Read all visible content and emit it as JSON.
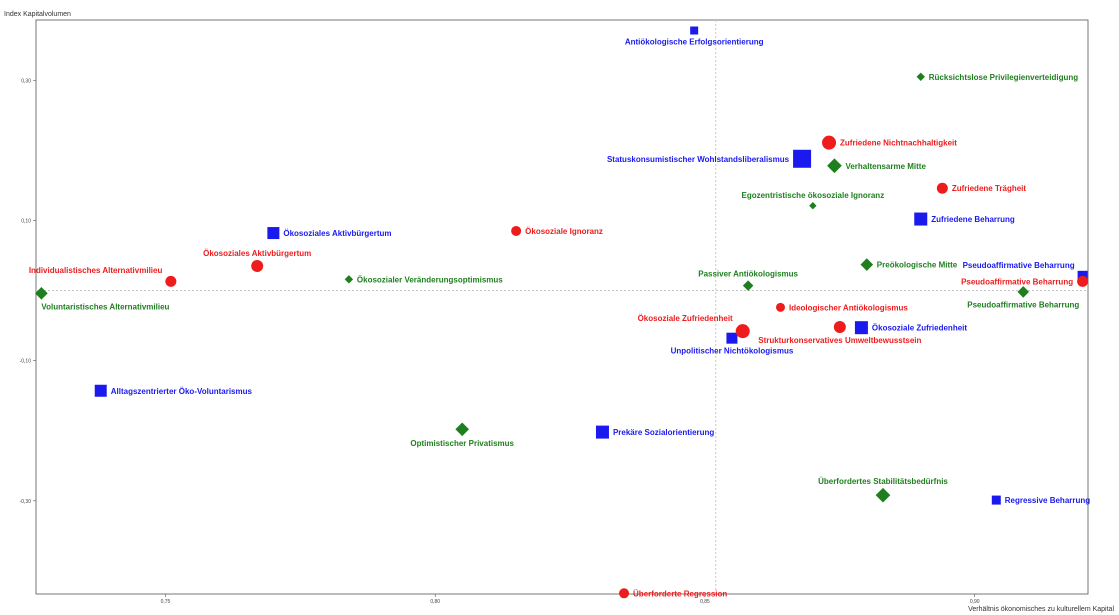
{
  "chart_data": {
    "type": "scatter",
    "title": "",
    "ylabel": "Index Kapitalvolumen",
    "xlabel": "Verhältnis ökonomisches zu kulturellem Kapital",
    "xlim": [
      0.726,
      0.921
    ],
    "ylim": [
      -0.433,
      0.386
    ],
    "x_ticks": [
      {
        "value": 0.75,
        "label": "0,75"
      },
      {
        "value": 0.8,
        "label": "0,80"
      },
      {
        "value": 0.85,
        "label": "0,85"
      },
      {
        "value": 0.9,
        "label": "0,90"
      }
    ],
    "y_ticks": [
      {
        "value": -0.3,
        "label": "-0,30"
      },
      {
        "value": -0.1,
        "label": "-0,10"
      },
      {
        "value": 0.1,
        "label": "0,10"
      },
      {
        "value": 0.3,
        "label": "0,30"
      }
    ],
    "reference_lines": {
      "x": 0.852,
      "y": 0.0
    },
    "grid": false,
    "legend": "none",
    "colors": {
      "blue": "#1a1aee",
      "red": "#ee1c1c",
      "green": "#1f7f1f",
      "ref_line": "#c6c6c6",
      "frame": "#555555"
    },
    "series": [
      {
        "marker": "square",
        "color": "#1a1aee",
        "points": [
          {
            "label": "Antiökologische Erfolgsorientierung",
            "x": 0.848,
            "y": 0.371,
            "size": 8,
            "label_pos": "below"
          },
          {
            "label": "Statuskonsumistischer Wohlstandsliberalismus",
            "x": 0.868,
            "y": 0.188,
            "size": 18,
            "label_pos": "left"
          },
          {
            "label": "Zufriedene Beharrung",
            "x": 0.89,
            "y": 0.102,
            "size": 13,
            "label_pos": "right"
          },
          {
            "label": "Ökosoziales Aktivbürgertum",
            "x": 0.77,
            "y": 0.082,
            "size": 12,
            "label_pos": "right"
          },
          {
            "label": "Pseudoaffirmative Beharrung",
            "x": 0.92,
            "y": 0.021,
            "size": 10,
            "label_pos": "left-above"
          },
          {
            "label": "Ökosoziale Zufriedenheit",
            "x": 0.879,
            "y": -0.053,
            "size": 13,
            "label_pos": "right"
          },
          {
            "label": "Unpolitischer Nichtökologismus",
            "x": 0.855,
            "y": -0.068,
            "size": 11,
            "label_pos": "below"
          },
          {
            "label": "Alltagszentrierter Öko-Voluntarismus",
            "x": 0.738,
            "y": -0.143,
            "size": 12,
            "label_pos": "right"
          },
          {
            "label": "Prekäre Sozialorientierung",
            "x": 0.831,
            "y": -0.202,
            "size": 13,
            "label_pos": "right"
          },
          {
            "label": "Regressive Beharrung",
            "x": 0.904,
            "y": -0.299,
            "size": 9,
            "label_pos": "right"
          }
        ]
      },
      {
        "marker": "circle",
        "color": "#ee1c1c",
        "points": [
          {
            "label": "Zufriedene Nichtnachhaltigkeit",
            "x": 0.873,
            "y": 0.211,
            "size": 14,
            "label_pos": "right"
          },
          {
            "label": "Zufriedene Trägheit",
            "x": 0.894,
            "y": 0.146,
            "size": 11,
            "label_pos": "right"
          },
          {
            "label": "Ökosoziale Ignoranz",
            "x": 0.815,
            "y": 0.085,
            "size": 10,
            "label_pos": "right"
          },
          {
            "label": "Ökosoziales Aktivbürgertum",
            "x": 0.767,
            "y": 0.035,
            "size": 12,
            "label_pos": "above"
          },
          {
            "label": "Individualistisches Alternativmilieu",
            "x": 0.751,
            "y": 0.013,
            "size": 11,
            "label_pos": "left-above"
          },
          {
            "label": "Pseudoaffirmative Beharrung",
            "x": 0.92,
            "y": 0.013,
            "size": 11,
            "label_pos": "left"
          },
          {
            "label": "Ideologischer Antiökologismus",
            "x": 0.864,
            "y": -0.024,
            "size": 9,
            "label_pos": "right"
          },
          {
            "label": "Ökosoziale Zufriedenheit",
            "x": 0.857,
            "y": -0.058,
            "size": 14,
            "label_pos": "left-above"
          },
          {
            "label": "Strukturkonservatives Umweltbewusstsein",
            "x": 0.875,
            "y": -0.052,
            "size": 12,
            "label_pos": "below"
          },
          {
            "label": "Überforderte Regression",
            "x": 0.835,
            "y": -0.432,
            "size": 10,
            "label_pos": "right"
          }
        ]
      },
      {
        "marker": "diamond",
        "color": "#1f7f1f",
        "points": [
          {
            "label": "Rücksichtslose Privilegienverteidigung",
            "x": 0.89,
            "y": 0.305,
            "size": 8,
            "label_pos": "right"
          },
          {
            "label": "Verhaltensarme Mitte",
            "x": 0.874,
            "y": 0.178,
            "size": 14,
            "label_pos": "right"
          },
          {
            "label": "Egozentristische ökosoziale Ignoranz",
            "x": 0.87,
            "y": 0.121,
            "size": 7,
            "label_pos": "above"
          },
          {
            "label": "Preökologische Mitte",
            "x": 0.88,
            "y": 0.037,
            "size": 12,
            "label_pos": "right"
          },
          {
            "label": "Passiver Antiökologismus",
            "x": 0.858,
            "y": 0.007,
            "size": 10,
            "label_pos": "above"
          },
          {
            "label": "Ökosozialer Veränderungsoptimismus",
            "x": 0.784,
            "y": 0.016,
            "size": 8,
            "label_pos": "right"
          },
          {
            "label": "Pseudoaffirmative Beharrung",
            "x": 0.909,
            "y": -0.002,
            "size": 11,
            "label_pos": "below"
          },
          {
            "label": "Voluntaristisches Alternativmilieu",
            "x": 0.727,
            "y": -0.004,
            "size": 12,
            "label_pos": "below-right"
          },
          {
            "label": "Optimistischer Privatismus",
            "x": 0.805,
            "y": -0.198,
            "size": 13,
            "label_pos": "below"
          },
          {
            "label": "Überfordertes Stabilitätsbedürfnis",
            "x": 0.883,
            "y": -0.292,
            "size": 14,
            "label_pos": "above"
          }
        ]
      }
    ]
  }
}
